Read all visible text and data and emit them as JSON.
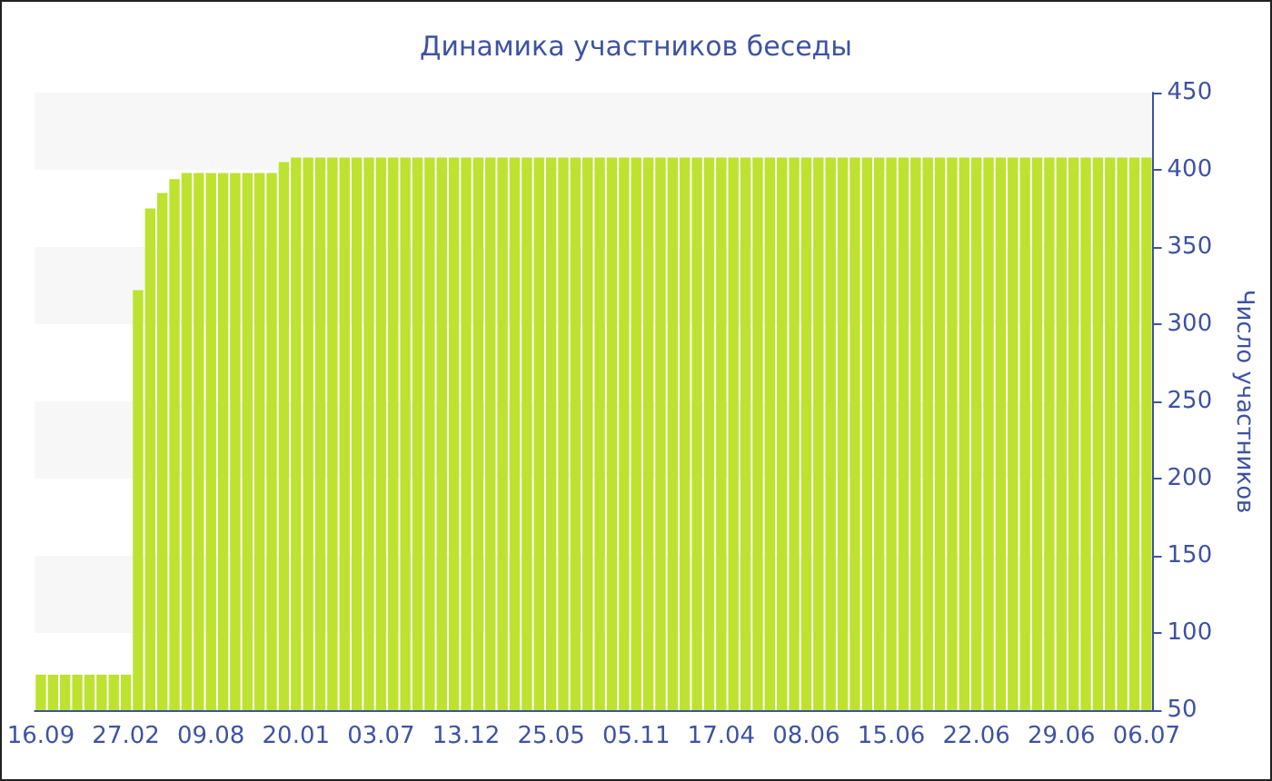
{
  "chart_data": {
    "type": "bar",
    "title": "Динамика участников беседы",
    "ylabel": "Число участников",
    "categories": [
      "16.09",
      null,
      null,
      null,
      null,
      null,
      null,
      "27.02",
      null,
      null,
      null,
      null,
      null,
      null,
      "09.08",
      null,
      null,
      null,
      null,
      null,
      null,
      "20.01",
      null,
      null,
      null,
      null,
      null,
      null,
      "03.07",
      null,
      null,
      null,
      null,
      null,
      null,
      "13.12",
      null,
      null,
      null,
      null,
      null,
      null,
      "25.05",
      null,
      null,
      null,
      null,
      null,
      null,
      "05.11",
      null,
      null,
      null,
      null,
      null,
      null,
      "17.04",
      null,
      null,
      null,
      null,
      null,
      null,
      "08.06",
      null,
      null,
      null,
      null,
      null,
      null,
      "15.06",
      null,
      null,
      null,
      null,
      null,
      null,
      "22.06",
      null,
      null,
      null,
      null,
      null,
      null,
      "29.06",
      null,
      null,
      null,
      null,
      null,
      null,
      "06.07"
    ],
    "values": [
      73,
      73,
      73,
      73,
      73,
      73,
      73,
      73,
      322,
      375,
      385,
      394,
      398,
      398,
      398,
      398,
      398,
      398,
      398,
      398,
      405,
      408,
      408,
      408,
      408,
      408,
      408,
      408,
      408,
      408,
      408,
      408,
      408,
      408,
      408,
      408,
      408,
      408,
      408,
      408,
      408,
      408,
      408,
      408,
      408,
      408,
      408,
      408,
      408,
      408,
      408,
      408,
      408,
      408,
      408,
      408,
      408,
      408,
      408,
      408,
      408,
      408,
      408,
      408,
      408,
      408,
      408,
      408,
      408,
      408,
      408,
      408,
      408,
      408,
      408,
      408,
      408,
      408,
      408,
      408,
      408,
      408,
      408,
      408,
      408,
      408,
      408,
      408,
      408,
      408,
      408,
      408
    ],
    "color": "#bde22f",
    "ylim": [
      50,
      450
    ],
    "yticks": [
      50,
      100,
      150,
      200,
      250,
      300,
      350,
      400,
      450
    ]
  }
}
